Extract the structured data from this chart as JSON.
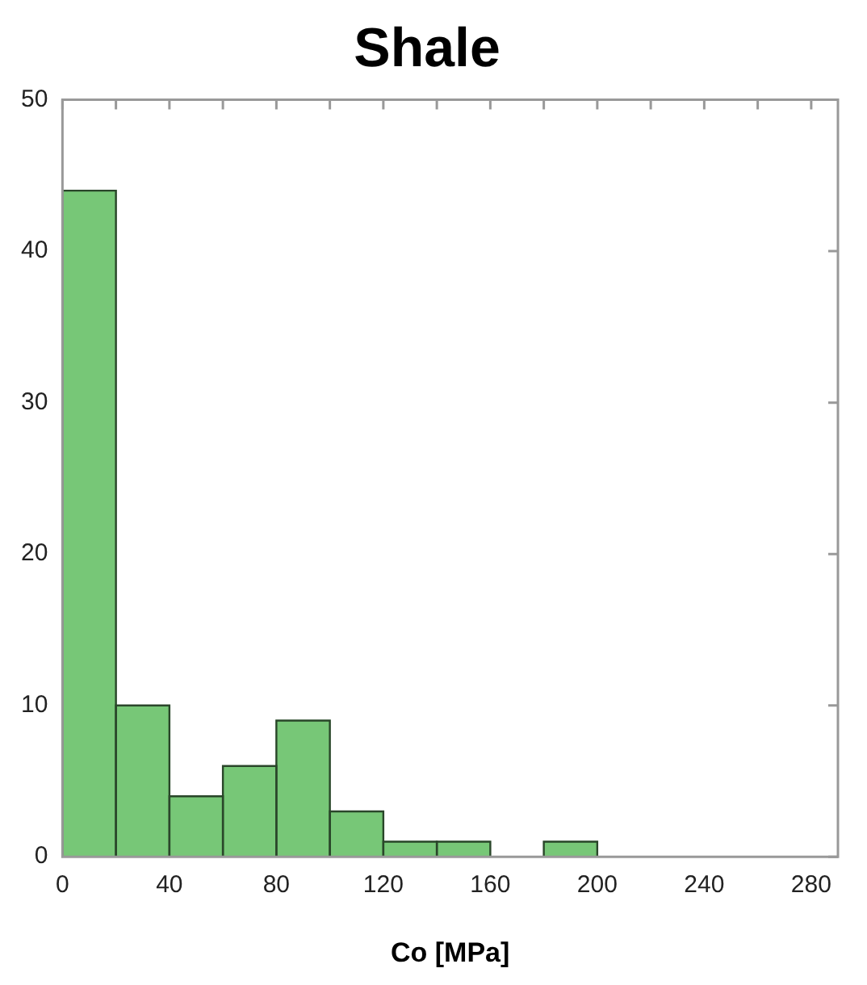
{
  "chart_data": {
    "type": "histogram",
    "title": "Shale",
    "xlabel": "Co [MPa]",
    "bins": [
      0,
      20,
      40,
      60,
      80,
      100,
      120,
      140,
      160,
      180,
      200
    ],
    "values": [
      44,
      10,
      4,
      6,
      9,
      3,
      1,
      1,
      0,
      1
    ],
    "color": "#77c777",
    "xlim": [
      0,
      290
    ],
    "xticks": [
      0,
      {
        "value": 20,
        "label": null
      },
      40,
      {
        "value": 60,
        "label": null
      },
      80,
      {
        "value": 100,
        "label": null
      },
      120,
      {
        "value": 140,
        "label": null
      },
      160,
      {
        "value": 180,
        "label": null
      },
      200,
      {
        "value": 220,
        "label": null
      },
      240,
      {
        "value": 260,
        "label": null
      },
      280
    ],
    "ylim": [
      0,
      50
    ],
    "yticks": [
      0,
      10,
      20,
      30,
      40,
      50
    ],
    "grid": false,
    "legend": false
  }
}
